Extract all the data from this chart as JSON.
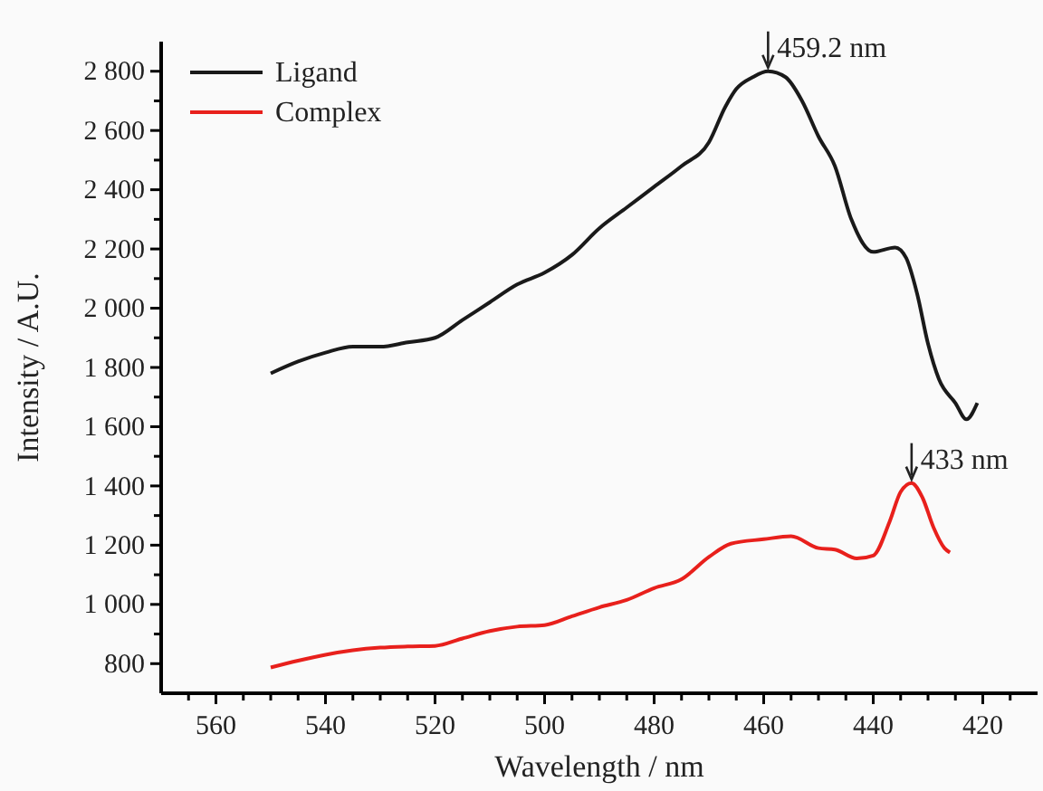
{
  "chart_data": {
    "type": "line",
    "xlabel": "Wavelength / nm",
    "ylabel": "Intensity / A.U.",
    "xlim": [
      570,
      410
    ],
    "ylim": [
      700,
      2900
    ],
    "xticks": [
      {
        "value": 565,
        "label": null
      },
      560,
      {
        "value": 555,
        "label": null
      },
      540,
      {
        "value": 545,
        "label": null
      },
      {
        "value": 535,
        "label": null
      },
      520,
      {
        "value": 525,
        "label": null
      },
      {
        "value": 515,
        "label": null
      },
      500,
      {
        "value": 505,
        "label": null
      },
      {
        "value": 495,
        "label": null
      },
      480,
      {
        "value": 485,
        "label": null
      },
      {
        "value": 475,
        "label": null
      },
      460,
      {
        "value": 465,
        "label": null
      },
      {
        "value": 455,
        "label": null
      },
      440,
      {
        "value": 445,
        "label": null
      },
      {
        "value": 435,
        "label": null
      },
      420,
      {
        "value": 425,
        "label": null
      },
      {
        "value": 415,
        "label": null
      },
      {
        "value": 550,
        "label": null
      },
      {
        "value": 530,
        "label": null
      },
      {
        "value": 510,
        "label": null
      },
      {
        "value": 490,
        "label": null
      },
      {
        "value": 470,
        "label": null
      },
      {
        "value": 450,
        "label": null
      },
      {
        "value": 430,
        "label": null
      }
    ],
    "yticks": [
      {
        "value": 800,
        "label": "800"
      },
      {
        "value": 900,
        "label": null
      },
      {
        "value": 1000,
        "label": "1 000"
      },
      {
        "value": 1100,
        "label": null
      },
      {
        "value": 1200,
        "label": "1 200"
      },
      {
        "value": 1300,
        "label": null
      },
      {
        "value": 1400,
        "label": "1 400"
      },
      {
        "value": 1500,
        "label": null
      },
      {
        "value": 1600,
        "label": "1 600"
      },
      {
        "value": 1700,
        "label": null
      },
      {
        "value": 1800,
        "label": "1 800"
      },
      {
        "value": 1900,
        "label": null
      },
      {
        "value": 2000,
        "label": "2 000"
      },
      {
        "value": 2100,
        "label": null
      },
      {
        "value": 2200,
        "label": "2 200"
      },
      {
        "value": 2300,
        "label": null
      },
      {
        "value": 2400,
        "label": "2 400"
      },
      {
        "value": 2500,
        "label": null
      },
      {
        "value": 2600,
        "label": "2 600"
      },
      {
        "value": 2700,
        "label": null
      },
      {
        "value": 2800,
        "label": "2 800"
      }
    ],
    "legend": "top left",
    "grid": false,
    "annotations": [
      {
        "text": "459.2 nm",
        "x": 459.2,
        "y": 2800
      },
      {
        "text": "433 nm",
        "x": 433,
        "y": 1410
      }
    ],
    "series": [
      {
        "name": "Ligand",
        "color": "#1a1a1a",
        "x": [
          550,
          545,
          540,
          535,
          530,
          525,
          520,
          515,
          510,
          505,
          500,
          495,
          490,
          485,
          480,
          475,
          470,
          467,
          465,
          462,
          459.2,
          456,
          453,
          450,
          447,
          444,
          440,
          436,
          434,
          432,
          430,
          428,
          425,
          423,
          421
        ],
        "values": [
          1780,
          1820,
          1850,
          1870,
          1870,
          1885,
          1900,
          1960,
          2020,
          2080,
          2120,
          2180,
          2270,
          2340,
          2410,
          2480,
          2560,
          2680,
          2740,
          2780,
          2800,
          2780,
          2700,
          2580,
          2480,
          2300,
          2190,
          2205,
          2170,
          2050,
          1880,
          1760,
          1680,
          1625,
          1680
        ]
      },
      {
        "name": "Complex",
        "color": "#e8201c",
        "x": [
          550,
          545,
          540,
          535,
          530,
          525,
          520,
          515,
          510,
          505,
          500,
          495,
          490,
          485,
          480,
          475,
          470,
          466,
          460,
          455,
          450,
          447,
          443,
          440,
          437,
          435,
          433,
          431,
          429,
          427,
          426
        ],
        "values": [
          787,
          810,
          830,
          845,
          854,
          858,
          860,
          885,
          910,
          925,
          930,
          960,
          990,
          1015,
          1055,
          1085,
          1160,
          1205,
          1220,
          1230,
          1190,
          1185,
          1155,
          1165,
          1280,
          1380,
          1410,
          1360,
          1260,
          1190,
          1175
        ]
      }
    ]
  }
}
